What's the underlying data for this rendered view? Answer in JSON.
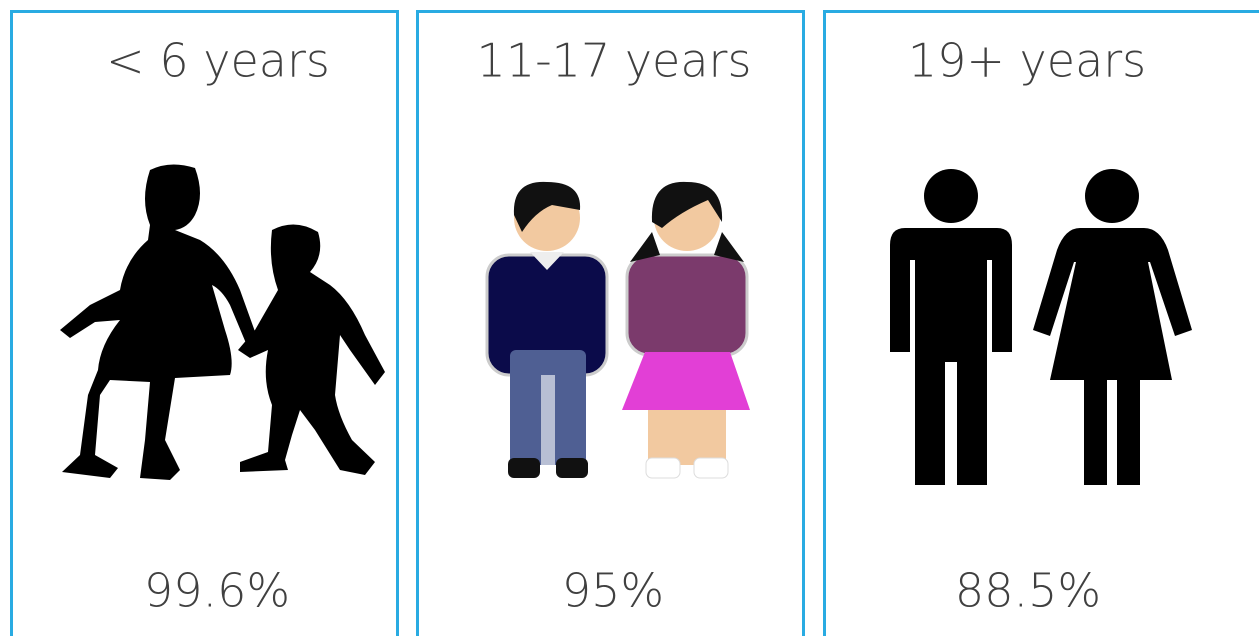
{
  "panels": [
    {
      "label": "< 6 years",
      "value": "99.6%"
    },
    {
      "label": "11-17 years",
      "value": "95%"
    },
    {
      "label": "19+ years",
      "value": "88.5%"
    }
  ]
}
